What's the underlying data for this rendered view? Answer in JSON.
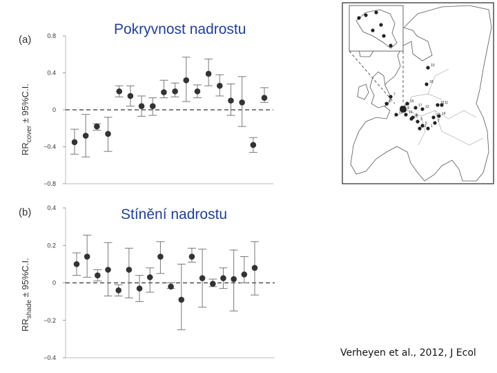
{
  "slide": {
    "title_top": "Pokryvnost nadrostu",
    "title_bottom": "Stínění nadrostu",
    "citation": "Verheyen et al., 2012, J Ecol"
  },
  "chart_data": [
    {
      "type": "scatter",
      "panel_label": "(a)",
      "ylabel_main": "RR",
      "ylabel_sub": "cover",
      "ylabel_rest": " ± 95%C.I.",
      "ylim": [
        -0.8,
        0.8
      ],
      "yticks": [
        0.8,
        0.4,
        0,
        -0.4,
        -0.8
      ],
      "ytick_labels": [
        "0.8",
        "0.4",
        "0",
        "−0.4",
        "−0.8"
      ],
      "reference_line": 0,
      "x": [
        1,
        2,
        3,
        4,
        5,
        6,
        7,
        8,
        9,
        10,
        11,
        12,
        13,
        14,
        15,
        16,
        17,
        18
      ],
      "y": [
        -0.35,
        -0.28,
        -0.18,
        -0.26,
        0.2,
        0.15,
        0.04,
        0.04,
        0.19,
        0.2,
        0.32,
        0.2,
        0.39,
        0.26,
        0.1,
        0.08,
        -0.38,
        0.13
      ],
      "low": [
        -0.48,
        -0.51,
        -0.22,
        -0.45,
        0.14,
        0.04,
        -0.07,
        -0.06,
        0.13,
        0.14,
        0.09,
        0.13,
        0.26,
        0.15,
        -0.06,
        -0.18,
        -0.46,
        0.08
      ],
      "high": [
        -0.21,
        -0.05,
        -0.15,
        -0.08,
        0.26,
        0.26,
        0.15,
        0.13,
        0.32,
        0.29,
        0.57,
        0.27,
        0.55,
        0.38,
        0.28,
        0.36,
        -0.3,
        0.24
      ]
    },
    {
      "type": "scatter",
      "panel_label": "(b)",
      "ylabel_main": "RR",
      "ylabel_sub": "shade",
      "ylabel_rest": " ± 95%C.I.",
      "ylim": [
        -0.4,
        0.4
      ],
      "yticks": [
        0.4,
        0.2,
        0,
        -0.2,
        -0.4
      ],
      "ytick_labels": [
        "0.4",
        "0.2",
        "0",
        "−0.2",
        "−0.4"
      ],
      "reference_line": 0,
      "x": [
        1,
        2,
        3,
        4,
        5,
        6,
        7,
        8,
        9,
        10,
        11,
        12,
        13,
        14,
        15,
        16,
        17,
        18
      ],
      "y": [
        0.1,
        0.14,
        0.04,
        0.07,
        -0.04,
        0.07,
        -0.03,
        0.03,
        0.14,
        -0.02,
        -0.09,
        0.14,
        0.025,
        -0.005,
        0.025,
        0.02,
        0.045,
        0.08
      ],
      "low": [
        0.04,
        0.03,
        0.01,
        -0.07,
        -0.07,
        -0.08,
        -0.1,
        -0.05,
        0.05,
        -0.03,
        -0.25,
        0.11,
        -0.13,
        -0.02,
        -0.03,
        -0.15,
        0.0,
        -0.065
      ],
      "high": [
        0.16,
        0.255,
        0.07,
        0.215,
        -0.01,
        0.185,
        0.04,
        0.08,
        0.22,
        0.0,
        0.1,
        0.185,
        0.18,
        0.02,
        0.08,
        0.175,
        0.14,
        0.22
      ]
    }
  ],
  "map": {
    "site_numbers": [
      "1",
      "2",
      "3",
      "4",
      "5",
      "6",
      "7",
      "8",
      "9",
      "10",
      "11",
      "12",
      "13",
      "14",
      "15",
      "16",
      "17",
      "18",
      "19",
      "20",
      "21",
      "22"
    ]
  }
}
